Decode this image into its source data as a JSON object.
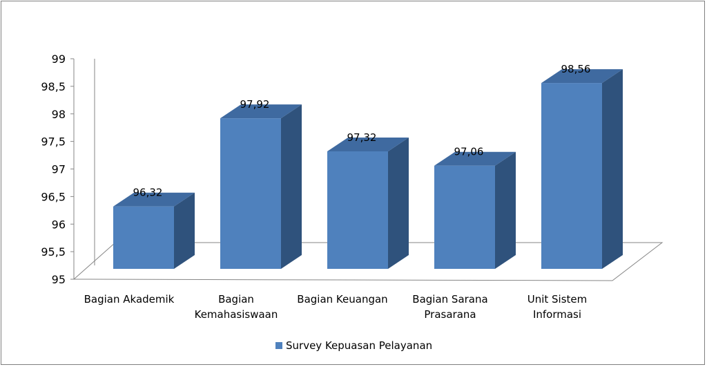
{
  "chart_data": {
    "type": "bar",
    "title": "",
    "xlabel": "",
    "ylabel": "",
    "categories": [
      [
        "Bagian Akademik"
      ],
      [
        "Bagian",
        "Kemahasiswaan"
      ],
      [
        "Bagian Keuangan"
      ],
      [
        "Bagian Sarana",
        "Prasarana"
      ],
      [
        "Unit Sistem",
        "Informasi"
      ]
    ],
    "series": [
      {
        "name": "Survey Kepuasan Pelayanan",
        "values": [
          96.32,
          97.92,
          97.32,
          97.06,
          98.56
        ],
        "value_labels": [
          "96,32",
          "97,92",
          "97,32",
          "97,06",
          "98,56"
        ],
        "color": "#4f81bd",
        "side_color": "#2f527c",
        "top_color": "#3f6aa0"
      }
    ],
    "ylim": [
      95,
      99
    ],
    "yticks": [
      95,
      95.5,
      96,
      96.5,
      97,
      97.5,
      98,
      98.5,
      99
    ],
    "ytick_labels": [
      "95",
      "95,5",
      "96",
      "96,5",
      "97",
      "97,5",
      "98",
      "98,5",
      "99"
    ],
    "grid": false,
    "legend": "bottom",
    "style": "3d-column"
  }
}
